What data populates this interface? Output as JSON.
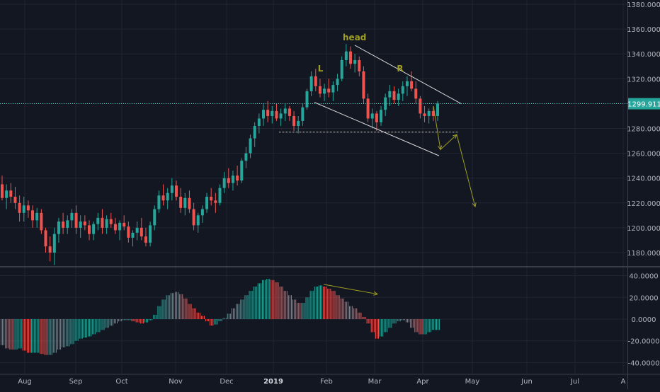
{
  "colors": {
    "background": "#131722",
    "grid": "#232632",
    "axis_text": "#b2b5be",
    "up": "#26a69a",
    "down": "#ef5350",
    "annotation": "#9e9e23",
    "trendline": "#d8d8d8",
    "price_line": "#4dd0c7",
    "price_label_bg": "#26a69a"
  },
  "chart_data": [
    {
      "type": "candlestick",
      "pane": "price",
      "x_axis": {
        "tick_labels": [
          "Aug",
          "Sep",
          "Oct",
          "Nov",
          "Dec",
          "2019",
          "Feb",
          "Mar",
          "Apr",
          "May",
          "Jun",
          "Jul",
          "A"
        ]
      },
      "y_axis": {
        "range": [
          1170,
          1380
        ],
        "tick_labels": [
          "1380.000",
          "1360.000",
          "1340.000",
          "1320.000",
          "1300.000",
          "1280.000",
          "1260.000",
          "1240.000",
          "1220.000",
          "1200.000",
          "1180.000"
        ]
      },
      "last_price": "1299.911",
      "annotations": [
        {
          "text": "head",
          "date": "2019-02-20",
          "price": 1351
        },
        {
          "text": "L",
          "date": "2019-01-30",
          "price": 1326
        },
        {
          "text": "R",
          "date": "2019-03-20",
          "price": 1326
        }
      ],
      "series": [
        {
          "values": [
            [
              1235,
              1242,
              1222,
              1224
            ],
            [
              1224,
              1235,
              1215,
              1230
            ],
            [
              1230,
              1236,
              1220,
              1225
            ],
            [
              1225,
              1233,
              1215,
              1220
            ],
            [
              1220,
              1226,
              1205,
              1212
            ],
            [
              1212,
              1225,
              1205,
              1218
            ],
            [
              1218,
              1222,
              1208,
              1214
            ],
            [
              1214,
              1218,
              1200,
              1206
            ],
            [
              1206,
              1216,
              1200,
              1212
            ],
            [
              1212,
              1215,
              1195,
              1198
            ],
            [
              1198,
              1200,
              1180,
              1185
            ],
            [
              1185,
              1193,
              1173,
              1180
            ],
            [
              1180,
              1200,
              1170,
              1195
            ],
            [
              1195,
              1208,
              1188,
              1205
            ],
            [
              1205,
              1212,
              1195,
              1200
            ],
            [
              1200,
              1210,
              1195,
              1206
            ],
            [
              1206,
              1215,
              1200,
              1212
            ],
            [
              1212,
              1218,
              1195,
              1200
            ],
            [
              1200,
              1210,
              1192,
              1205
            ],
            [
              1205,
              1210,
              1198,
              1202
            ],
            [
              1202,
              1206,
              1190,
              1195
            ],
            [
              1195,
              1205,
              1190,
              1203
            ],
            [
              1203,
              1212,
              1198,
              1208
            ],
            [
              1208,
              1215,
              1195,
              1200
            ],
            [
              1200,
              1210,
              1195,
              1207
            ],
            [
              1207,
              1212,
              1200,
              1203
            ],
            [
              1203,
              1208,
              1195,
              1198
            ],
            [
              1198,
              1206,
              1190,
              1204
            ],
            [
              1204,
              1210,
              1198,
              1201
            ],
            [
              1201,
              1205,
              1188,
              1192
            ],
            [
              1192,
              1198,
              1185,
              1196
            ],
            [
              1196,
              1205,
              1190,
              1200
            ],
            [
              1200,
              1208,
              1190,
              1193
            ],
            [
              1193,
              1200,
              1185,
              1188
            ],
            [
              1188,
              1205,
              1185,
              1202
            ],
            [
              1202,
              1218,
              1198,
              1215
            ],
            [
              1215,
              1230,
              1212,
              1226
            ],
            [
              1226,
              1235,
              1218,
              1222
            ],
            [
              1222,
              1232,
              1215,
              1228
            ],
            [
              1228,
              1240,
              1222,
              1234
            ],
            [
              1234,
              1238,
              1222,
              1225
            ],
            [
              1225,
              1232,
              1212,
              1216
            ],
            [
              1216,
              1228,
              1210,
              1224
            ],
            [
              1224,
              1230,
              1212,
              1215
            ],
            [
              1215,
              1220,
              1198,
              1202
            ],
            [
              1202,
              1212,
              1196,
              1210
            ],
            [
              1210,
              1218,
              1204,
              1215
            ],
            [
              1215,
              1228,
              1212,
              1225
            ],
            [
              1225,
              1232,
              1218,
              1222
            ],
            [
              1222,
              1228,
              1212,
              1220
            ],
            [
              1220,
              1235,
              1218,
              1232
            ],
            [
              1232,
              1245,
              1228,
              1240
            ],
            [
              1240,
              1248,
              1232,
              1236
            ],
            [
              1236,
              1246,
              1230,
              1242
            ],
            [
              1242,
              1250,
              1234,
              1238
            ],
            [
              1238,
              1256,
              1236,
              1254
            ],
            [
              1254,
              1265,
              1248,
              1260
            ],
            [
              1260,
              1275,
              1256,
              1272
            ],
            [
              1272,
              1285,
              1265,
              1282
            ],
            [
              1282,
              1292,
              1276,
              1288
            ],
            [
              1288,
              1300,
              1282,
              1295
            ],
            [
              1295,
              1302,
              1285,
              1290
            ],
            [
              1290,
              1298,
              1284,
              1294
            ],
            [
              1294,
              1300,
              1286,
              1288
            ],
            [
              1288,
              1296,
              1282,
              1292
            ],
            [
              1292,
              1300,
              1286,
              1296
            ],
            [
              1296,
              1298,
              1286,
              1290
            ],
            [
              1290,
              1294,
              1278,
              1282
            ],
            [
              1282,
              1290,
              1276,
              1286
            ],
            [
              1286,
              1300,
              1282,
              1297
            ],
            [
              1297,
              1312,
              1295,
              1310
            ],
            [
              1310,
              1326,
              1306,
              1322
            ],
            [
              1322,
              1328,
              1310,
              1314
            ],
            [
              1314,
              1320,
              1305,
              1308
            ],
            [
              1308,
              1316,
              1302,
              1312
            ],
            [
              1312,
              1320,
              1305,
              1309
            ],
            [
              1309,
              1318,
              1302,
              1315
            ],
            [
              1315,
              1324,
              1310,
              1320
            ],
            [
              1320,
              1338,
              1318,
              1335
            ],
            [
              1335,
              1348,
              1330,
              1342
            ],
            [
              1342,
              1346,
              1328,
              1332
            ],
            [
              1332,
              1340,
              1325,
              1335
            ],
            [
              1335,
              1338,
              1322,
              1326
            ],
            [
              1326,
              1330,
              1300,
              1304
            ],
            [
              1304,
              1308,
              1285,
              1288
            ],
            [
              1288,
              1296,
              1280,
              1292
            ],
            [
              1292,
              1294,
              1278,
              1285
            ],
            [
              1285,
              1298,
              1282,
              1295
            ],
            [
              1295,
              1308,
              1290,
              1305
            ],
            [
              1305,
              1315,
              1298,
              1310
            ],
            [
              1310,
              1314,
              1300,
              1303
            ],
            [
              1303,
              1312,
              1298,
              1308
            ],
            [
              1308,
              1318,
              1302,
              1314
            ],
            [
              1314,
              1322,
              1306,
              1318
            ],
            [
              1318,
              1326,
              1310,
              1312
            ],
            [
              1312,
              1318,
              1300,
              1304
            ],
            [
              1304,
              1306,
              1288,
              1292
            ],
            [
              1292,
              1298,
              1285,
              1290
            ],
            [
              1290,
              1296,
              1284,
              1294
            ],
            [
              1294,
              1298,
              1286,
              1290
            ],
            [
              1290,
              1302,
              1286,
              1300
            ]
          ]
        }
      ]
    },
    {
      "type": "bar",
      "pane": "oscillator",
      "y_axis": {
        "range": [
          -44,
          46
        ],
        "tick_labels": [
          "40.0000",
          "20.0000",
          "0.0000",
          "-20.0000",
          "-40.0000"
        ]
      },
      "series": [
        {
          "values": [
            -24,
            -27,
            -28,
            -28,
            -27,
            -29,
            -31,
            -31,
            -31,
            -32,
            -33,
            -33,
            -31,
            -28,
            -26,
            -25,
            -23,
            -20,
            -18,
            -17,
            -16,
            -14,
            -12,
            -10,
            -8,
            -6,
            -4,
            -2,
            -1,
            -1,
            -2,
            -3,
            -4,
            -3,
            -1,
            4,
            12,
            18,
            22,
            24,
            25,
            23,
            19,
            14,
            10,
            6,
            3,
            -2,
            -6,
            -5,
            -2,
            1,
            5,
            10,
            14,
            18,
            22,
            26,
            30,
            33,
            36,
            37,
            36,
            34,
            30,
            26,
            22,
            18,
            15,
            15,
            20,
            26,
            30,
            31,
            30,
            28,
            26,
            22,
            19,
            16,
            12,
            10,
            6,
            2,
            -4,
            -12,
            -18,
            -16,
            -12,
            -8,
            -4,
            -2,
            -1,
            -3,
            -8,
            -12,
            -14,
            -14,
            -12,
            -10,
            -10
          ]
        }
      ]
    }
  ]
}
